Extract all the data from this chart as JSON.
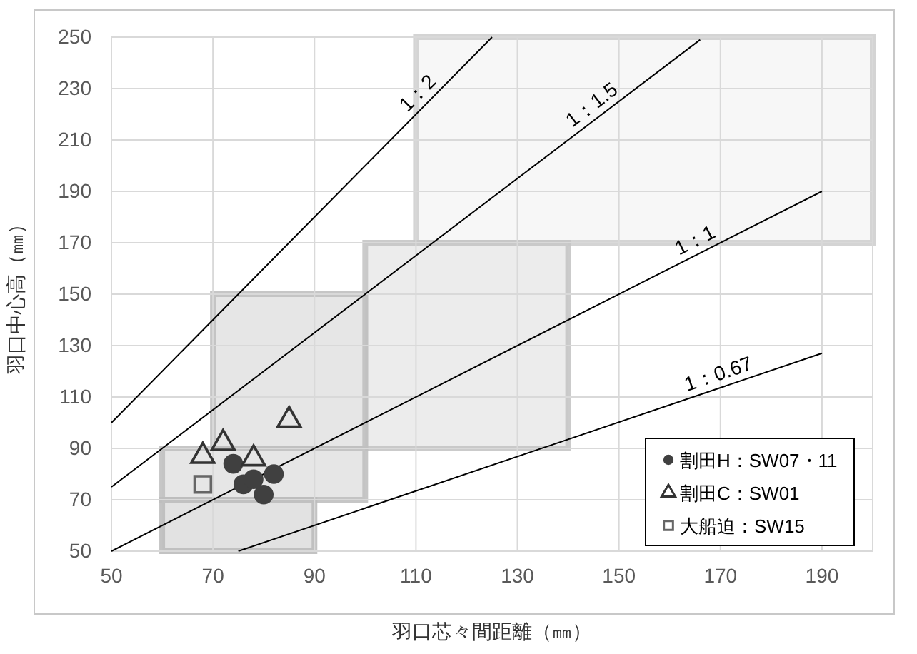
{
  "chart_data": {
    "type": "scatter",
    "xlabel": "羽口芯々間距離（㎜）",
    "ylabel": "羽口中心高（㎜）",
    "xlim": [
      50,
      200
    ],
    "xticks": [
      50,
      70,
      90,
      110,
      130,
      150,
      170,
      190
    ],
    "ylim": [
      50,
      250
    ],
    "yticks": [
      50,
      70,
      90,
      110,
      130,
      150,
      170,
      190,
      210,
      230,
      250
    ],
    "grid": true,
    "legend": "bottom right",
    "series": [
      {
        "type": "area",
        "color": "#f7f7f7",
        "x": [
          110,
          200,
          200,
          110,
          110
        ],
        "values": [
          170,
          170,
          250,
          250,
          170
        ]
      },
      {
        "type": "area",
        "color": "#ececec",
        "x": [
          100,
          140,
          140,
          100,
          100
        ],
        "values": [
          90,
          90,
          170,
          170,
          90
        ]
      },
      {
        "type": "area",
        "color": "#e6e6e6",
        "x": [
          70,
          100,
          100,
          70,
          70
        ],
        "values": [
          90,
          90,
          150,
          150,
          90
        ]
      },
      {
        "type": "area",
        "color": "#e6e6e6",
        "x": [
          60,
          100,
          100,
          60,
          60
        ],
        "values": [
          70,
          70,
          90,
          90,
          70
        ]
      },
      {
        "type": "area",
        "color": "#e2e2e2",
        "x": [
          60,
          90,
          90,
          60,
          60
        ],
        "values": [
          50,
          50,
          70,
          70,
          50
        ]
      },
      {
        "type": "line",
        "name": "1：2",
        "color": "#000000",
        "x": [
          50,
          125
        ],
        "values": [
          100,
          250
        ]
      },
      {
        "type": "line",
        "name": "1：1.5",
        "color": "#000000",
        "x": [
          50,
          166
        ],
        "values": [
          75,
          249
        ]
      },
      {
        "type": "line",
        "name": "1：1",
        "color": "#000000",
        "x": [
          50,
          190
        ],
        "values": [
          50,
          190
        ]
      },
      {
        "type": "line",
        "name": "1：0.67",
        "color": "#000000",
        "x": [
          75,
          190
        ],
        "values": [
          50,
          127
        ]
      },
      {
        "name": "割田H：SW07・11",
        "marker": "circle",
        "color": "#404040",
        "x": [
          74,
          76,
          78,
          82,
          80
        ],
        "values": [
          84,
          76,
          78,
          80,
          72
        ]
      },
      {
        "name": "割田C：SW01",
        "marker": "triangle",
        "color": "#333333",
        "x": [
          68,
          72,
          78,
          85
        ],
        "values": [
          87,
          92,
          86,
          101
        ]
      },
      {
        "name": "大船迫：SW15",
        "marker": "square",
        "color": "#666666",
        "x": [
          68
        ],
        "values": [
          76
        ]
      }
    ]
  }
}
